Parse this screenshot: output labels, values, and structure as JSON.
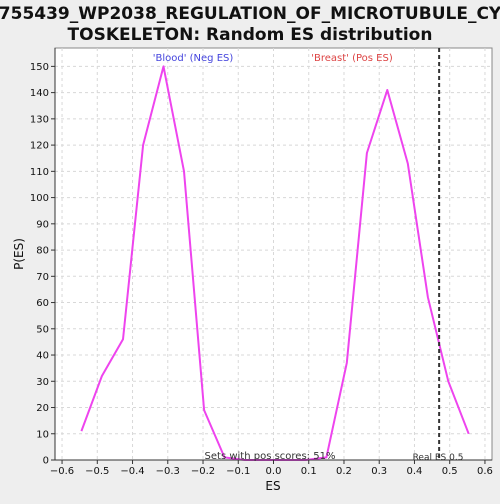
{
  "chart_data": {
    "type": "line",
    "title_line1": "755439_WP2038_REGULATION_OF_MICROTUBULE_CY",
    "title_line2": "TOSKELETON: Random ES distribution",
    "xlabel": "ES",
    "ylabel": "P(ES)",
    "xlim": [
      -0.62,
      0.62
    ],
    "ylim": [
      0,
      157
    ],
    "xticks": [
      -0.6,
      -0.5,
      -0.4,
      -0.3,
      -0.2,
      -0.1,
      0.0,
      0.1,
      0.2,
      0.3,
      0.4,
      0.5,
      0.6
    ],
    "xtick_labels": [
      "−0.6",
      "−0.5",
      "−0.4",
      "−0.3",
      "−0.2",
      "−0.1",
      "0.0",
      "0.1",
      "0.2",
      "0.3",
      "0.4",
      "0.5",
      "0.6"
    ],
    "yticks": [
      0,
      10,
      20,
      30,
      40,
      50,
      60,
      70,
      80,
      90,
      100,
      110,
      120,
      130,
      140,
      150
    ],
    "grid": true,
    "series": [
      {
        "color": "#ee44ee",
        "x": [
          -0.545,
          -0.487,
          -0.427,
          -0.37,
          -0.312,
          -0.254,
          -0.197,
          -0.139,
          -0.082,
          -0.024,
          0.034,
          0.092,
          0.15,
          0.208,
          0.265,
          0.323,
          0.381,
          0.438,
          0.496,
          0.554
        ],
        "y": [
          11,
          32,
          46,
          120,
          150,
          110,
          19,
          1,
          0,
          0,
          0,
          0,
          1,
          37,
          117,
          141,
          113,
          62,
          30,
          10
        ]
      }
    ],
    "legend_neg": {
      "label": "'Blood' (Neg ES)",
      "color": "#4444dd"
    },
    "legend_pos": {
      "label": "'Breast' (Pos ES)",
      "color": "#dd4444"
    },
    "real_es": {
      "value": 0.47,
      "label": "Real ES 0.5"
    },
    "footer_note": "Sets with pos scores: 51%"
  }
}
